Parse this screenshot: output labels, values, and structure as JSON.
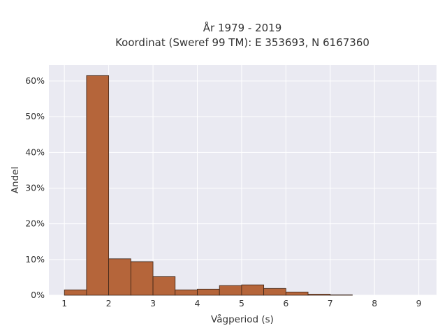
{
  "chart_data": {
    "type": "bar",
    "title_line1": "År 1979 - 2019",
    "title_line2": "Koordinat (Sweref 99 TM): E 353693, N 6167360",
    "xlabel": "Vågperiod (s)",
    "ylabel": "Andel",
    "xlim": [
      0.65,
      9.4
    ],
    "ylim": [
      0,
      0.645
    ],
    "x_ticks": [
      1,
      2,
      3,
      4,
      5,
      6,
      7,
      8,
      9
    ],
    "x_tick_labels": [
      "1",
      "2",
      "3",
      "4",
      "5",
      "6",
      "7",
      "8",
      "9"
    ],
    "y_ticks": [
      0,
      0.1,
      0.2,
      0.3,
      0.4,
      0.5,
      0.6
    ],
    "y_tick_labels": [
      "0%",
      "10%",
      "20%",
      "30%",
      "40%",
      "50%",
      "60%"
    ],
    "grid": true,
    "bin_width": 0.5,
    "bins": [
      {
        "x0": 1.0,
        "x1": 1.5,
        "value": 0.015
      },
      {
        "x0": 1.5,
        "x1": 2.0,
        "value": 0.615
      },
      {
        "x0": 2.0,
        "x1": 2.5,
        "value": 0.102
      },
      {
        "x0": 2.5,
        "x1": 3.0,
        "value": 0.094
      },
      {
        "x0": 3.0,
        "x1": 3.5,
        "value": 0.052
      },
      {
        "x0": 3.5,
        "x1": 4.0,
        "value": 0.015
      },
      {
        "x0": 4.0,
        "x1": 4.5,
        "value": 0.017
      },
      {
        "x0": 4.5,
        "x1": 5.0,
        "value": 0.027
      },
      {
        "x0": 5.0,
        "x1": 5.5,
        "value": 0.029
      },
      {
        "x0": 5.5,
        "x1": 6.0,
        "value": 0.019
      },
      {
        "x0": 6.0,
        "x1": 6.5,
        "value": 0.009
      },
      {
        "x0": 6.5,
        "x1": 7.0,
        "value": 0.003
      },
      {
        "x0": 7.0,
        "x1": 7.5,
        "value": 0.001
      }
    ],
    "colors": {
      "bar_fill": "#b5653a",
      "bar_stroke": "#3a2418",
      "plot_background": "#eaeaf2",
      "grid": "#ffffff"
    }
  }
}
